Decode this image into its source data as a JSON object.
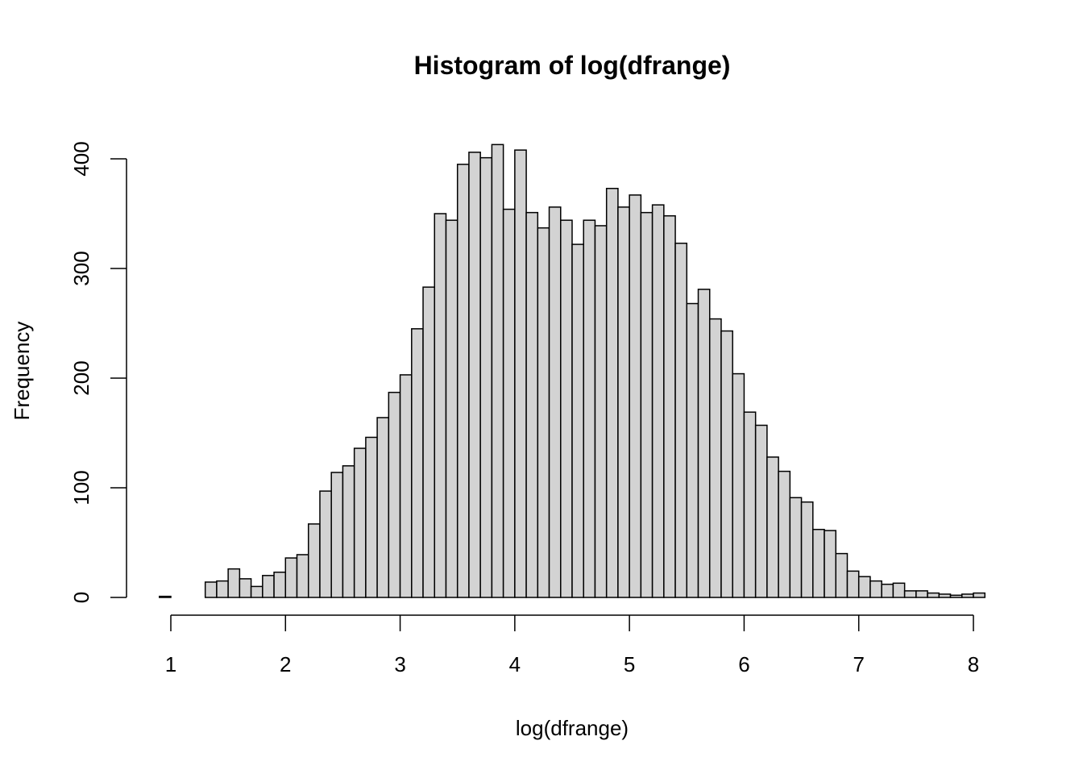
{
  "chart_data": {
    "type": "bar",
    "title": "Histogram of log(dfrange)",
    "xlabel": "log(dfrange)",
    "ylabel": "Frequency",
    "xlim": [
      0.9,
      8.1
    ],
    "ylim": [
      0,
      400
    ],
    "x_ticks": [
      1,
      2,
      3,
      4,
      5,
      6,
      7,
      8
    ],
    "y_ticks": [
      0,
      100,
      200,
      300,
      400
    ],
    "bin_width": 0.1,
    "bin_start": 0.9,
    "values": [
      1,
      0,
      0,
      0,
      14,
      15,
      26,
      17,
      10,
      20,
      23,
      36,
      39,
      67,
      97,
      114,
      120,
      136,
      146,
      164,
      187,
      203,
      245,
      283,
      350,
      344,
      395,
      406,
      401,
      413,
      354,
      408,
      351,
      337,
      356,
      344,
      322,
      344,
      339,
      373,
      356,
      367,
      351,
      358,
      348,
      323,
      268,
      281,
      254,
      243,
      204,
      169,
      157,
      128,
      115,
      91,
      87,
      62,
      61,
      40,
      24,
      19,
      15,
      12,
      13,
      6,
      6,
      4,
      3,
      2,
      3,
      4
    ],
    "bar_fill": "#d3d3d3",
    "bar_stroke": "#000000",
    "grid": false
  }
}
